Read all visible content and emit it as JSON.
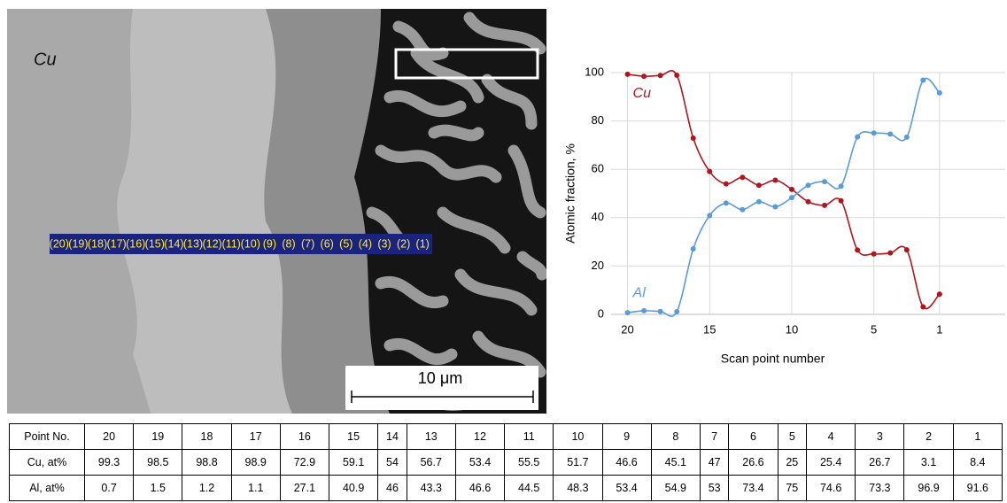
{
  "image": {
    "phase_label": "Cu",
    "scale_bar": "10 μm",
    "scan_labels": [
      "(20)",
      "(19)",
      "(18)",
      "(17)",
      "(16)",
      "(15)",
      "(14)",
      "(13)",
      "(12)",
      "(11)",
      "(10)",
      "(9)",
      "(8)",
      "(7)",
      "(6)",
      "(5)",
      "(4)",
      "(3)",
      "(2)",
      "(1)"
    ]
  },
  "chart_data": {
    "type": "line",
    "x_label": "Scan point number",
    "y_label": "Atomic fraction, %",
    "x": [
      20,
      19,
      18,
      17,
      16,
      15,
      14,
      13,
      12,
      11,
      10,
      9,
      8,
      7,
      6,
      5,
      4,
      3,
      2,
      1
    ],
    "series": [
      {
        "name": "Cu",
        "color": "#b0151d",
        "values": [
          99.3,
          98.5,
          98.8,
          98.9,
          72.9,
          59.1,
          54,
          56.7,
          53.4,
          55.5,
          51.7,
          46.6,
          45.1,
          47,
          26.6,
          25,
          25.4,
          26.7,
          3.1,
          8.4
        ]
      },
      {
        "name": "Al",
        "color": "#5b9bd5",
        "values": [
          0.7,
          1.5,
          1.2,
          1.1,
          27.1,
          40.9,
          46,
          43.3,
          46.6,
          44.5,
          48.3,
          53.4,
          54.9,
          53,
          73.4,
          75,
          74.6,
          73.3,
          96.9,
          91.6
        ]
      }
    ],
    "xlim": [
      21,
      -3
    ],
    "xticks": [
      20,
      15,
      10,
      5,
      1
    ],
    "ylim": [
      0,
      100
    ],
    "yticks": [
      0,
      20,
      40,
      60,
      80,
      100
    ],
    "grid": true
  },
  "table": {
    "rows": [
      [
        "Point No.",
        20,
        19,
        18,
        17,
        16,
        15,
        14,
        13,
        12,
        11,
        10,
        9,
        8,
        7,
        6,
        5,
        4,
        3,
        2,
        1
      ],
      [
        "Cu, at%",
        99.3,
        98.5,
        98.8,
        98.9,
        72.9,
        59.1,
        54,
        56.7,
        53.4,
        55.5,
        51.7,
        46.6,
        45.1,
        47,
        26.6,
        25,
        25.4,
        26.7,
        3.1,
        8.4
      ],
      [
        "Al, at%",
        0.7,
        1.5,
        1.2,
        1.1,
        27.1,
        40.9,
        46,
        43.3,
        46.6,
        44.5,
        48.3,
        53.4,
        54.9,
        53,
        73.4,
        75,
        74.6,
        73.3,
        96.9,
        91.6
      ]
    ]
  }
}
